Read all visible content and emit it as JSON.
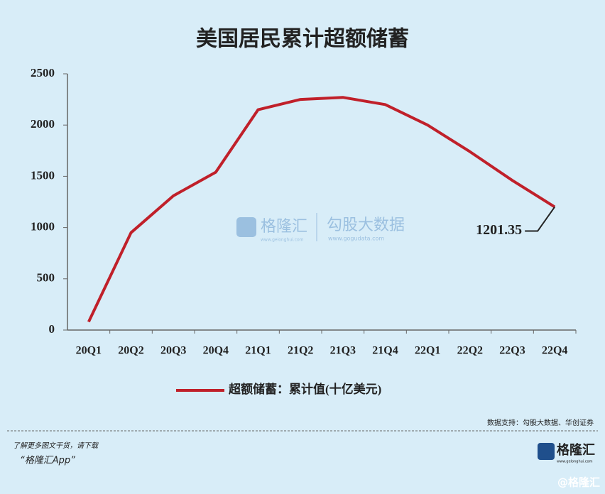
{
  "chart_data": {
    "type": "line",
    "title": "美国居民累计超额储蓄",
    "categories": [
      "20Q1",
      "20Q2",
      "20Q3",
      "20Q4",
      "21Q1",
      "21Q2",
      "21Q3",
      "21Q4",
      "22Q1",
      "22Q2",
      "22Q3",
      "22Q4"
    ],
    "series": [
      {
        "name": "超额储蓄：累计值(十亿美元)",
        "color": "#c0202a",
        "values": [
          80,
          950,
          1310,
          1540,
          2150,
          2250,
          2270,
          2200,
          2000,
          1740,
          1460,
          1201.35
        ],
        "value_labels": [
          null,
          null,
          null,
          null,
          null,
          null,
          null,
          null,
          null,
          null,
          null,
          "1201.35"
        ]
      }
    ],
    "ylim": [
      0,
      2500
    ],
    "yticks": [
      0,
      500,
      1000,
      1500,
      2000,
      2500
    ],
    "grid": false,
    "legend": "bottom",
    "source": "数据支持：勾股大数据、华创证券"
  },
  "watermark": {
    "brand": "格隆汇",
    "brand_url": "www.gelonghui.com",
    "partner": "勾股大数据",
    "partner_url": "www.gogudata.com"
  },
  "footer": {
    "prompt": "了解更多图文干货，请下载",
    "app": "“格隆汇App”",
    "logo": "格隆汇",
    "logo_url": "www.gelonghui.com",
    "handle": "@格隆汇"
  }
}
